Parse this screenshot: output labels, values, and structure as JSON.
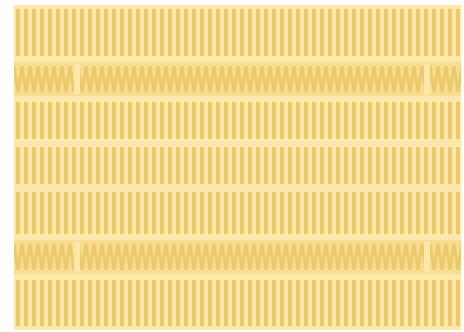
{
  "pattern": {
    "colors": {
      "background": "#fde7ab",
      "stripe": "#ecc96b",
      "band_fill": "#f8dd92"
    },
    "bands": [
      {
        "type": "vertical-stripes",
        "name": "stripes-band-1"
      },
      {
        "type": "zigzag",
        "name": "zigzag-band-1"
      },
      {
        "type": "vertical-stripes",
        "name": "stripes-band-2"
      },
      {
        "type": "vertical-stripes",
        "name": "stripes-band-3"
      },
      {
        "type": "vertical-stripes",
        "name": "stripes-band-4"
      },
      {
        "type": "zigzag",
        "name": "zigzag-band-2"
      },
      {
        "type": "vertical-stripes",
        "name": "stripes-band-5"
      }
    ]
  }
}
